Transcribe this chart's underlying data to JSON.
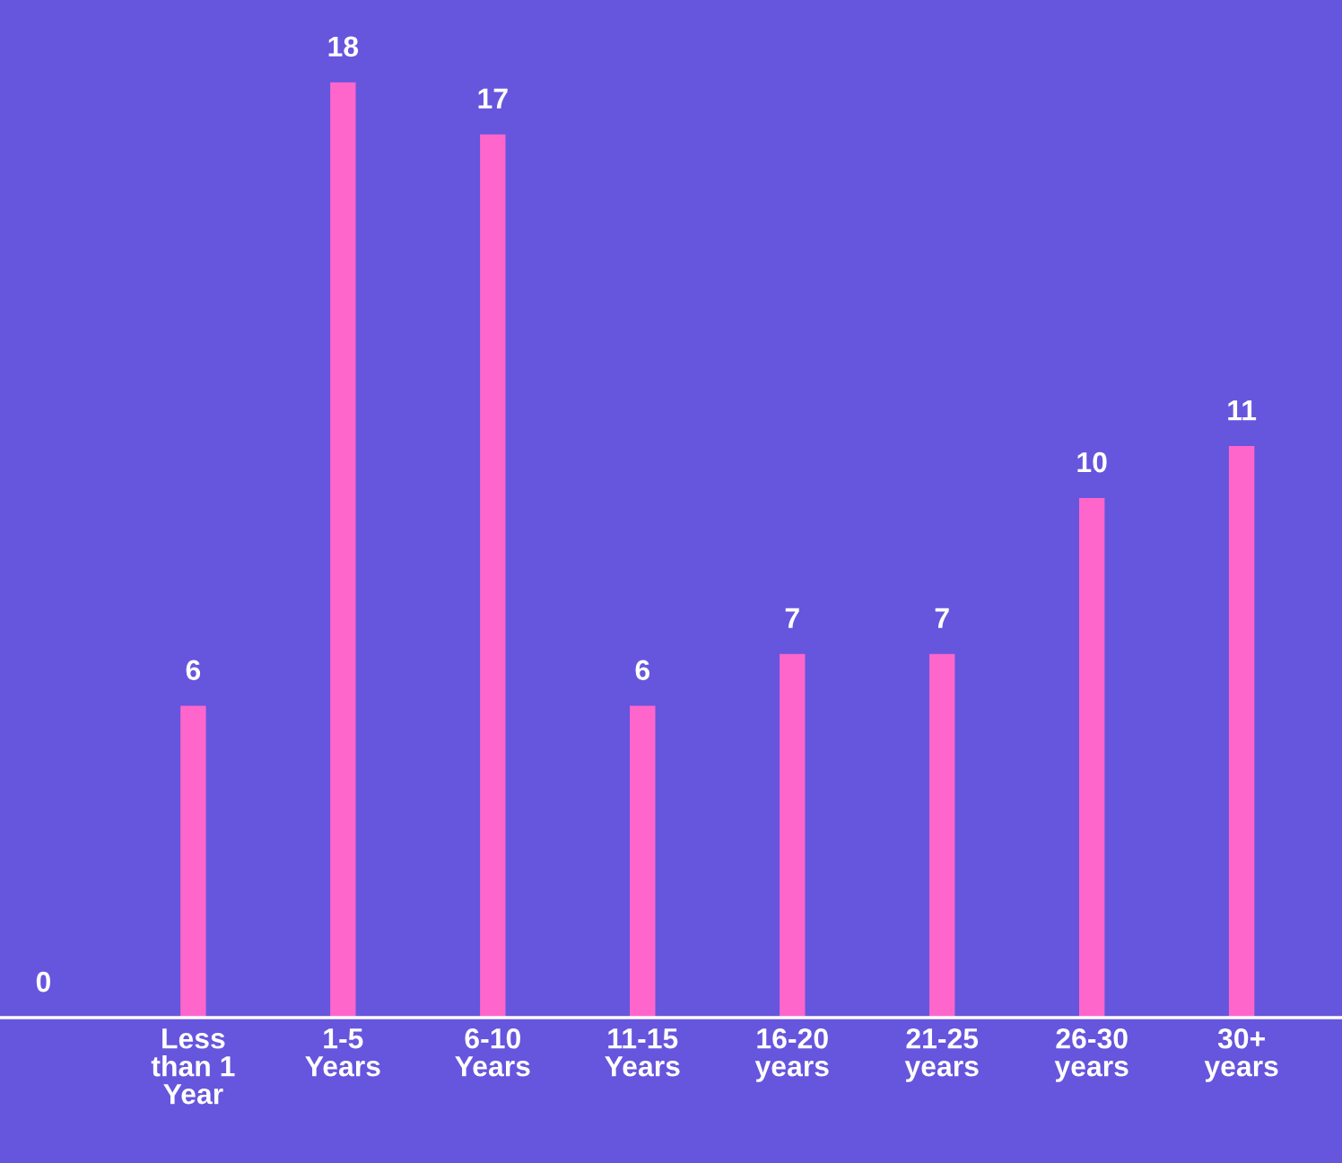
{
  "chart_data": {
    "type": "bar",
    "categories": [
      null,
      "Less\nthan 1\nYear",
      "1-5\nYears",
      "6-10\nYears",
      "11-15\nYears",
      "16-20\nyears",
      "21-25\nyears",
      "26-30\nyears",
      "30+\nyears"
    ],
    "values": [
      0,
      6,
      18,
      17,
      6,
      7,
      7,
      10,
      11
    ],
    "color": "#ff66cc",
    "data_labels": true,
    "grid": false,
    "legend": false
  }
}
